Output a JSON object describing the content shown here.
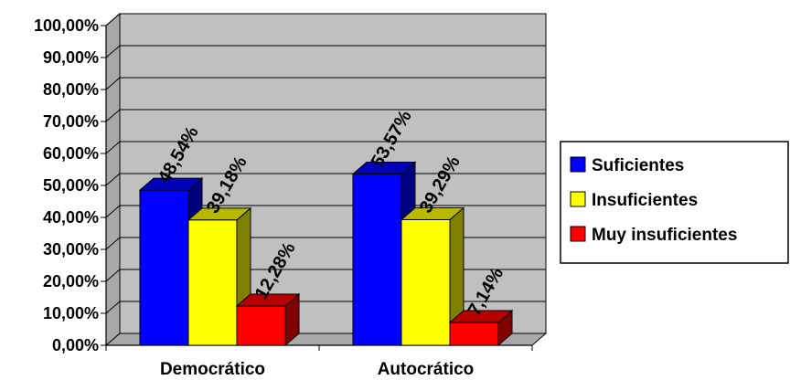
{
  "chart_data": {
    "type": "bar",
    "categories": [
      "Democrático",
      "Autocrático"
    ],
    "series": [
      {
        "name": "Suficientes",
        "values": [
          48.54,
          53.57
        ],
        "labels": [
          "48,54%",
          "53,57%"
        ],
        "color": "#0000ff"
      },
      {
        "name": "Insuficientes",
        "values": [
          39.18,
          39.29
        ],
        "labels": [
          "39,18%",
          "39,29%"
        ],
        "color": "#ffff00"
      },
      {
        "name": "Muy insuficientes",
        "values": [
          12.28,
          7.14
        ],
        "labels": [
          "12,28%",
          "7,14%"
        ],
        "color": "#ff0000"
      }
    ],
    "yticks": [
      0,
      10,
      20,
      30,
      40,
      50,
      60,
      70,
      80,
      90,
      100
    ],
    "ytick_labels": [
      "0,00%",
      "10,00%",
      "20,00%",
      "30,00%",
      "40,00%",
      "50,00%",
      "60,00%",
      "70,00%",
      "80,00%",
      "90,00%",
      "100,00%"
    ],
    "ylim": [
      0,
      100
    ],
    "grid": true,
    "three_d": true,
    "legend_position": "right",
    "plot_background": "#c0c0c0"
  }
}
